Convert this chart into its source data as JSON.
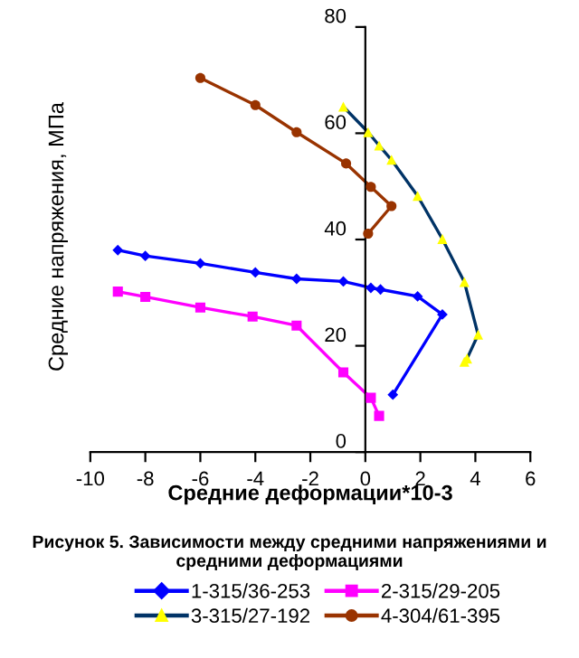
{
  "chart_data": {
    "type": "line",
    "title": "Рисунок 5. Зависимости между средними напряжениями и средними деформациями",
    "xlabel": "Средние деформации*10-3",
    "ylabel": "Средние напряжения, МПа",
    "xlim": [
      -10,
      6
    ],
    "xticks": [
      -10,
      -8,
      -6,
      -4,
      -2,
      0,
      2,
      4,
      6
    ],
    "ylim": [
      0,
      80
    ],
    "yticks": [
      0,
      20,
      40,
      60,
      80
    ],
    "grid": false,
    "legend": "bottom",
    "series": [
      {
        "name": "1-315/36-253",
        "color": "#0000ff",
        "marker": "diamond",
        "x": [
          -9.0,
          -8.0,
          -6.0,
          -4.0,
          -2.5,
          -0.8,
          0.2,
          0.55,
          1.9,
          2.8,
          1.0
        ],
        "values": [
          38.0,
          36.9,
          35.5,
          33.8,
          32.6,
          32.1,
          30.9,
          30.6,
          29.3,
          25.9,
          10.8
        ]
      },
      {
        "name": "2-315/29-205",
        "color": "#ff00ff",
        "marker": "square",
        "x": [
          -9.0,
          -8.0,
          -6.0,
          -4.1,
          -2.5,
          -0.8,
          0.2,
          0.5
        ],
        "values": [
          30.2,
          29.2,
          27.2,
          25.5,
          23.8,
          15.0,
          10.2,
          6.8
        ]
      },
      {
        "name": "3-315/27-192",
        "color": "#003366",
        "colors": [
          "#ffff00",
          "#ffff00",
          "#ffff00",
          "#ffff00",
          "#ffff00",
          "#ffff00",
          "#ffff00",
          "#ffff00",
          "#ffff00",
          "#ffff00"
        ],
        "marker": "triangle",
        "x": [
          -0.8,
          0.1,
          0.5,
          0.95,
          1.9,
          2.8,
          3.6,
          4.1,
          3.7,
          3.6
        ],
        "values": [
          65.0,
          60.2,
          57.7,
          55.0,
          48.2,
          40.1,
          32.0,
          22.1,
          17.6,
          17.0
        ]
      },
      {
        "name": "4-304/61-395",
        "color": "#993300",
        "marker": "circle",
        "x": [
          -6.0,
          -4.0,
          -2.5,
          -0.7,
          0.2,
          0.95,
          0.1
        ],
        "values": [
          70.4,
          65.3,
          60.2,
          54.3,
          49.9,
          46.3,
          41.1
        ]
      }
    ]
  }
}
